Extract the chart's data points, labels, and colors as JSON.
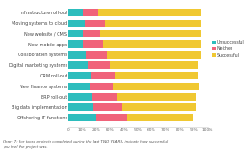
{
  "categories": [
    "Infrastructure roll-out",
    "Moving systems to cloud",
    "New website / CMS",
    "New mobile apps",
    "Collaboration systems",
    "Digital marketing systems",
    "CRM roll-out",
    "New finance systems",
    "ERP roll-out",
    "Big data implementation",
    "Offshoring IT functions"
  ],
  "unsuccessful": [
    10,
    12,
    10,
    11,
    13,
    14,
    16,
    15,
    17,
    18,
    20
  ],
  "neither": [
    12,
    14,
    13,
    14,
    15,
    16,
    18,
    17,
    18,
    20,
    22
  ],
  "successful": [
    73,
    70,
    72,
    70,
    67,
    63,
    59,
    62,
    57,
    54,
    47
  ],
  "colors": {
    "unsuccessful": "#2dbdbd",
    "neither": "#f0637a",
    "successful": "#f0c832"
  },
  "legend_labels": [
    "Unsuccessful",
    "Neither",
    "Successful"
  ],
  "caption": "Chart 7: For those projects completed during the last TWO YEARS, indicate how successful\nyou feel the project was.",
  "xtick_labels": [
    "0",
    "10%",
    "20%",
    "30%",
    "40%",
    "50%",
    "60%",
    "70%",
    "80%",
    "90%",
    "100%"
  ],
  "xtick_vals": [
    0,
    10,
    20,
    30,
    40,
    50,
    60,
    70,
    80,
    90,
    100
  ],
  "background_color": "#ffffff",
  "bar_height": 0.72,
  "figsize": [
    2.75,
    1.83
  ],
  "dpi": 100
}
